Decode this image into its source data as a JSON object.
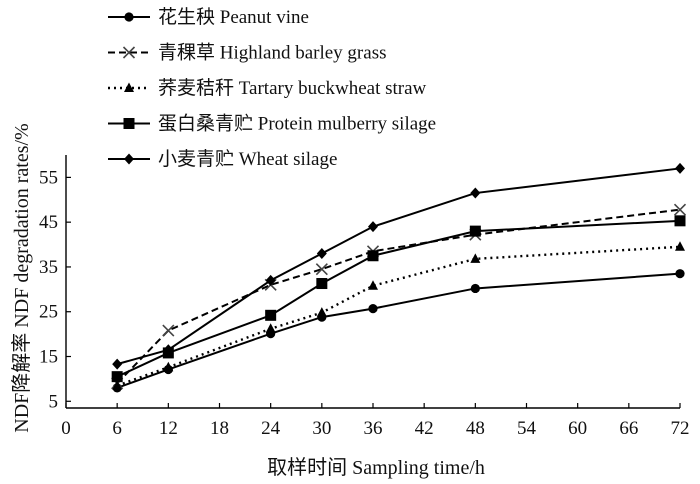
{
  "chart_data": {
    "type": "line",
    "xlabel": "取样时间 Sampling time/h",
    "ylabel": "NDF降解率 NDF degradation rates/%",
    "x_ticks": [
      "0",
      "6",
      "12",
      "18",
      "24",
      "30",
      "36",
      "42",
      "48",
      "54",
      "60",
      "66",
      "72"
    ],
    "y_ticks": [
      "5",
      "15",
      "25",
      "35",
      "45",
      "55"
    ],
    "xlim": [
      0,
      72
    ],
    "ylim": [
      5,
      60
    ],
    "legend_position": "top-left",
    "grid": false,
    "x": [
      6,
      12,
      24,
      30,
      36,
      48,
      72
    ],
    "series": [
      {
        "name": "花生秧 Peanut vine",
        "values": [
          8.0,
          12.1,
          20.1,
          23.8,
          25.7,
          30.2,
          33.5
        ],
        "line_style": "solid",
        "marker": "circle"
      },
      {
        "name": "青稞草 Highland barley grass",
        "values": [
          9.0,
          20.8,
          31.0,
          34.5,
          38.5,
          42.2,
          47.8
        ],
        "line_style": "dashed",
        "marker": "x"
      },
      {
        "name": "荞麦秸秆 Tartary buckwheat straw",
        "values": [
          8.5,
          12.6,
          21.2,
          24.8,
          30.8,
          36.8,
          39.5
        ],
        "line_style": "dotted",
        "marker": "triangle"
      },
      {
        "name": "蛋白桑青贮 Protein mulberry silage",
        "values": [
          10.5,
          15.8,
          24.2,
          31.3,
          37.5,
          43.0,
          45.3
        ],
        "line_style": "solid",
        "marker": "square"
      },
      {
        "name": "小麦青贮 Wheat silage",
        "values": [
          13.3,
          16.5,
          32.0,
          38.0,
          44.0,
          51.5,
          57.0
        ],
        "line_style": "solid",
        "marker": "diamond"
      }
    ]
  }
}
